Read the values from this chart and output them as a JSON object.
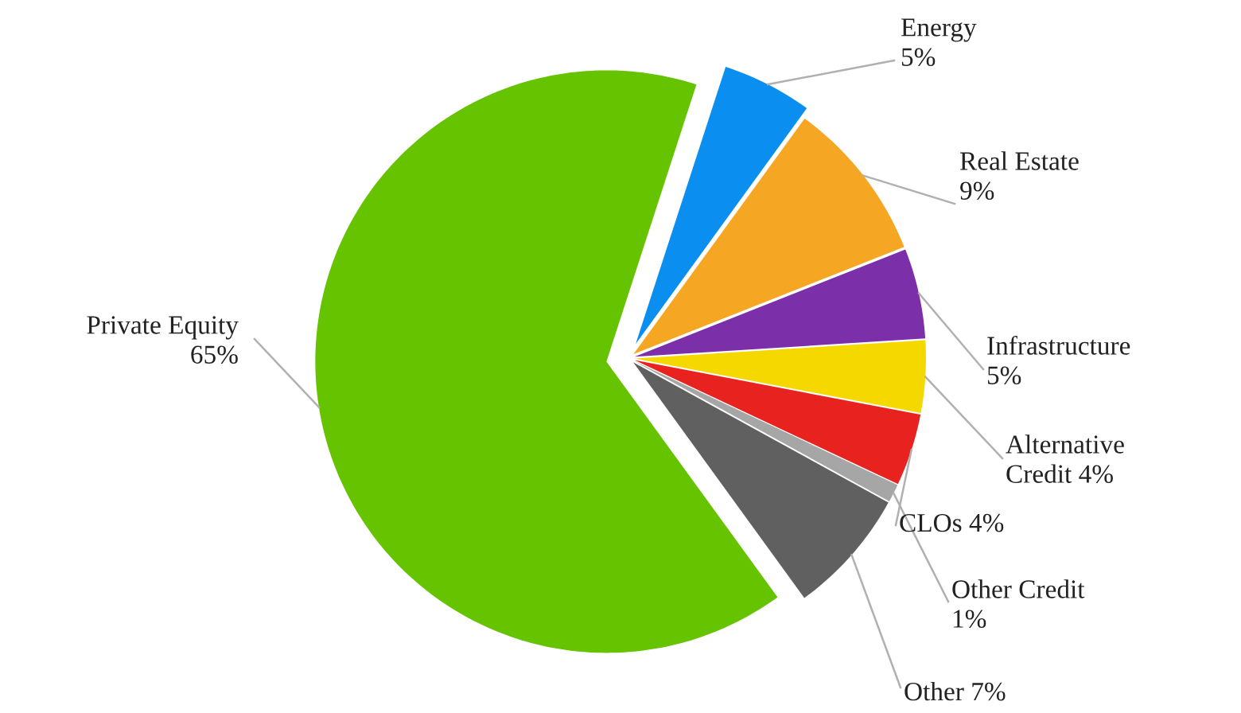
{
  "chart_data": {
    "type": "pie",
    "categories": [
      "Energy",
      "Real Estate",
      "Infrastructure",
      "Alternative Credit",
      "CLOs",
      "Other Credit",
      "Other",
      "Private Equity"
    ],
    "values": [
      5,
      9,
      5,
      4,
      4,
      1,
      7,
      65
    ],
    "value_labels": [
      "5%",
      "9%",
      "5%",
      "4%",
      "4%",
      "1%",
      "7%",
      "65%"
    ],
    "colors": [
      "#0a8ff0",
      "#f5a623",
      "#7b2fa8",
      "#f5d800",
      "#e8231f",
      "#a6a6a6",
      "#606060",
      "#66c300"
    ],
    "legend": false
  }
}
